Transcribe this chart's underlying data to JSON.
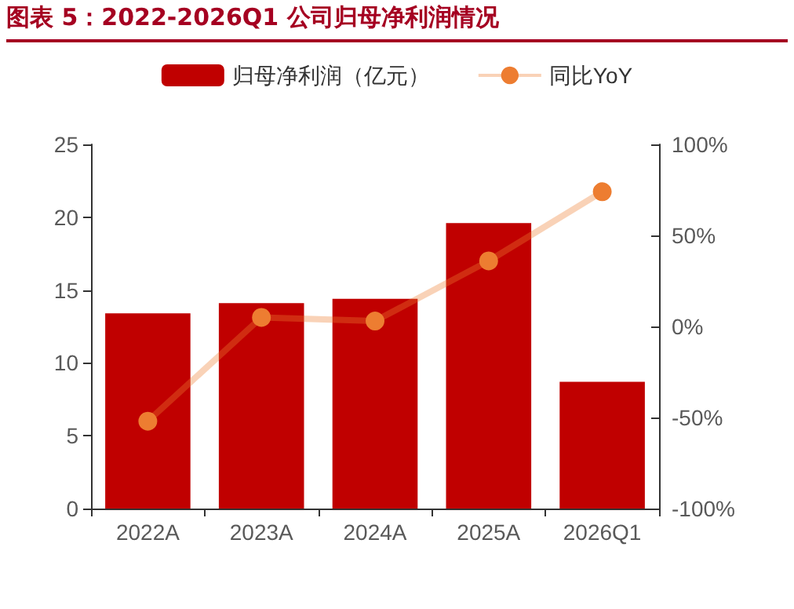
{
  "chart_data": {
    "type": "bar",
    "title": "图表 5：2022-2026Q1 公司归母净利润情况",
    "categories": [
      "2022A",
      "2023A",
      "2024A",
      "2025A",
      "2026Q1"
    ],
    "series": [
      {
        "name": "归母净利润（亿元）",
        "color": "#c00000",
        "values": [
          13.4,
          14.1,
          14.4,
          19.6,
          8.7
        ]
      },
      {
        "name": "同比YoY",
        "type": "line",
        "axis": "y2",
        "color": "#ed7d31",
        "marker": "circle",
        "values": [
          -52,
          5,
          3,
          36,
          74
        ]
      }
    ],
    "ylim": [
      0,
      25
    ],
    "yticks": [
      0,
      5,
      10,
      15,
      20,
      25
    ],
    "y2lim": [
      -100,
      100
    ],
    "y2ticks": [
      {
        "value": -100,
        "label": "-100%"
      },
      {
        "value": -50,
        "label": "-50%"
      },
      {
        "value": 0,
        "label": "0%"
      },
      {
        "value": 50,
        "label": "50%"
      },
      {
        "value": 100,
        "label": "100%"
      }
    ],
    "grid": false,
    "legend": "top"
  }
}
